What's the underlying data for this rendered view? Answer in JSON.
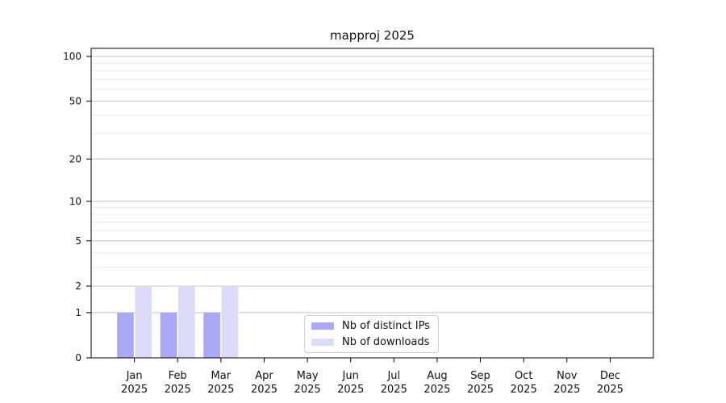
{
  "chart_data": {
    "type": "bar",
    "title": "mapproj 2025",
    "categories": [
      "Jan",
      "Feb",
      "Mar",
      "Apr",
      "May",
      "Jun",
      "Jul",
      "Aug",
      "Sep",
      "Oct",
      "Nov",
      "Dec"
    ],
    "category_year": "2025",
    "series": [
      {
        "name": "Nb of distinct IPs",
        "color": "#a9a9f5",
        "values": [
          1,
          1,
          1,
          0,
          0,
          0,
          0,
          0,
          0,
          0,
          0,
          0
        ]
      },
      {
        "name": "Nb of downloads",
        "color": "#dcdcfa",
        "values": [
          2,
          2,
          2,
          0,
          0,
          0,
          0,
          0,
          0,
          0,
          0,
          0
        ]
      }
    ],
    "yscale": "log1p",
    "ylim": [
      0,
      113
    ],
    "y_major_ticks": [
      0,
      1,
      2,
      5,
      10,
      20,
      50,
      100
    ],
    "y_minor_ticks": [
      3,
      4,
      6,
      7,
      8,
      9,
      30,
      40,
      60,
      70,
      80,
      90
    ],
    "grid": true,
    "legend_position": "lower center",
    "colors": {
      "major_grid": "#c3c3c3",
      "minor_grid": "#ebebeb",
      "axis": "#000000",
      "text": "#111111"
    }
  }
}
